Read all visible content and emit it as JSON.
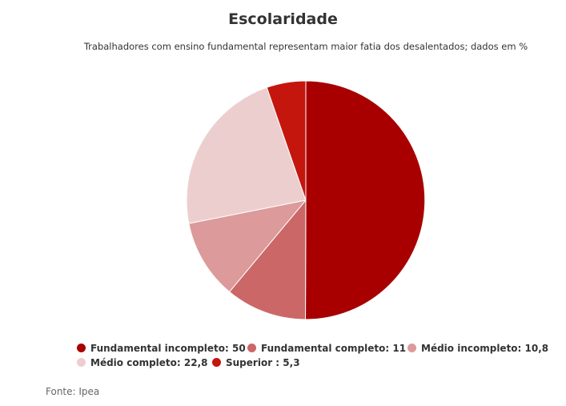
{
  "chart_data": {
    "type": "pie",
    "title": "Escolaridade",
    "subtitle": "Trabalhadores com ensino fundamental representam maior fatia dos desalentados; dados em %",
    "slices": [
      {
        "label": "Fundamental incompleto",
        "value": 50,
        "value_text": "50",
        "color": "#a80000"
      },
      {
        "label": "Fundamental completo",
        "value": 11,
        "value_text": "11",
        "color": "#cc6767"
      },
      {
        "label": "Médio incompleto",
        "value": 10.8,
        "value_text": "10,8",
        "color": "#dc9a9a"
      },
      {
        "label": "Médio completo",
        "value": 22.8,
        "value_text": "22,8",
        "color": "#edcece"
      },
      {
        "label": "Superior ",
        "value": 5.3,
        "value_text": "5,3",
        "color": "#c4160d"
      }
    ],
    "legend_position": "bottom",
    "source": "Fonte: Ipea"
  }
}
